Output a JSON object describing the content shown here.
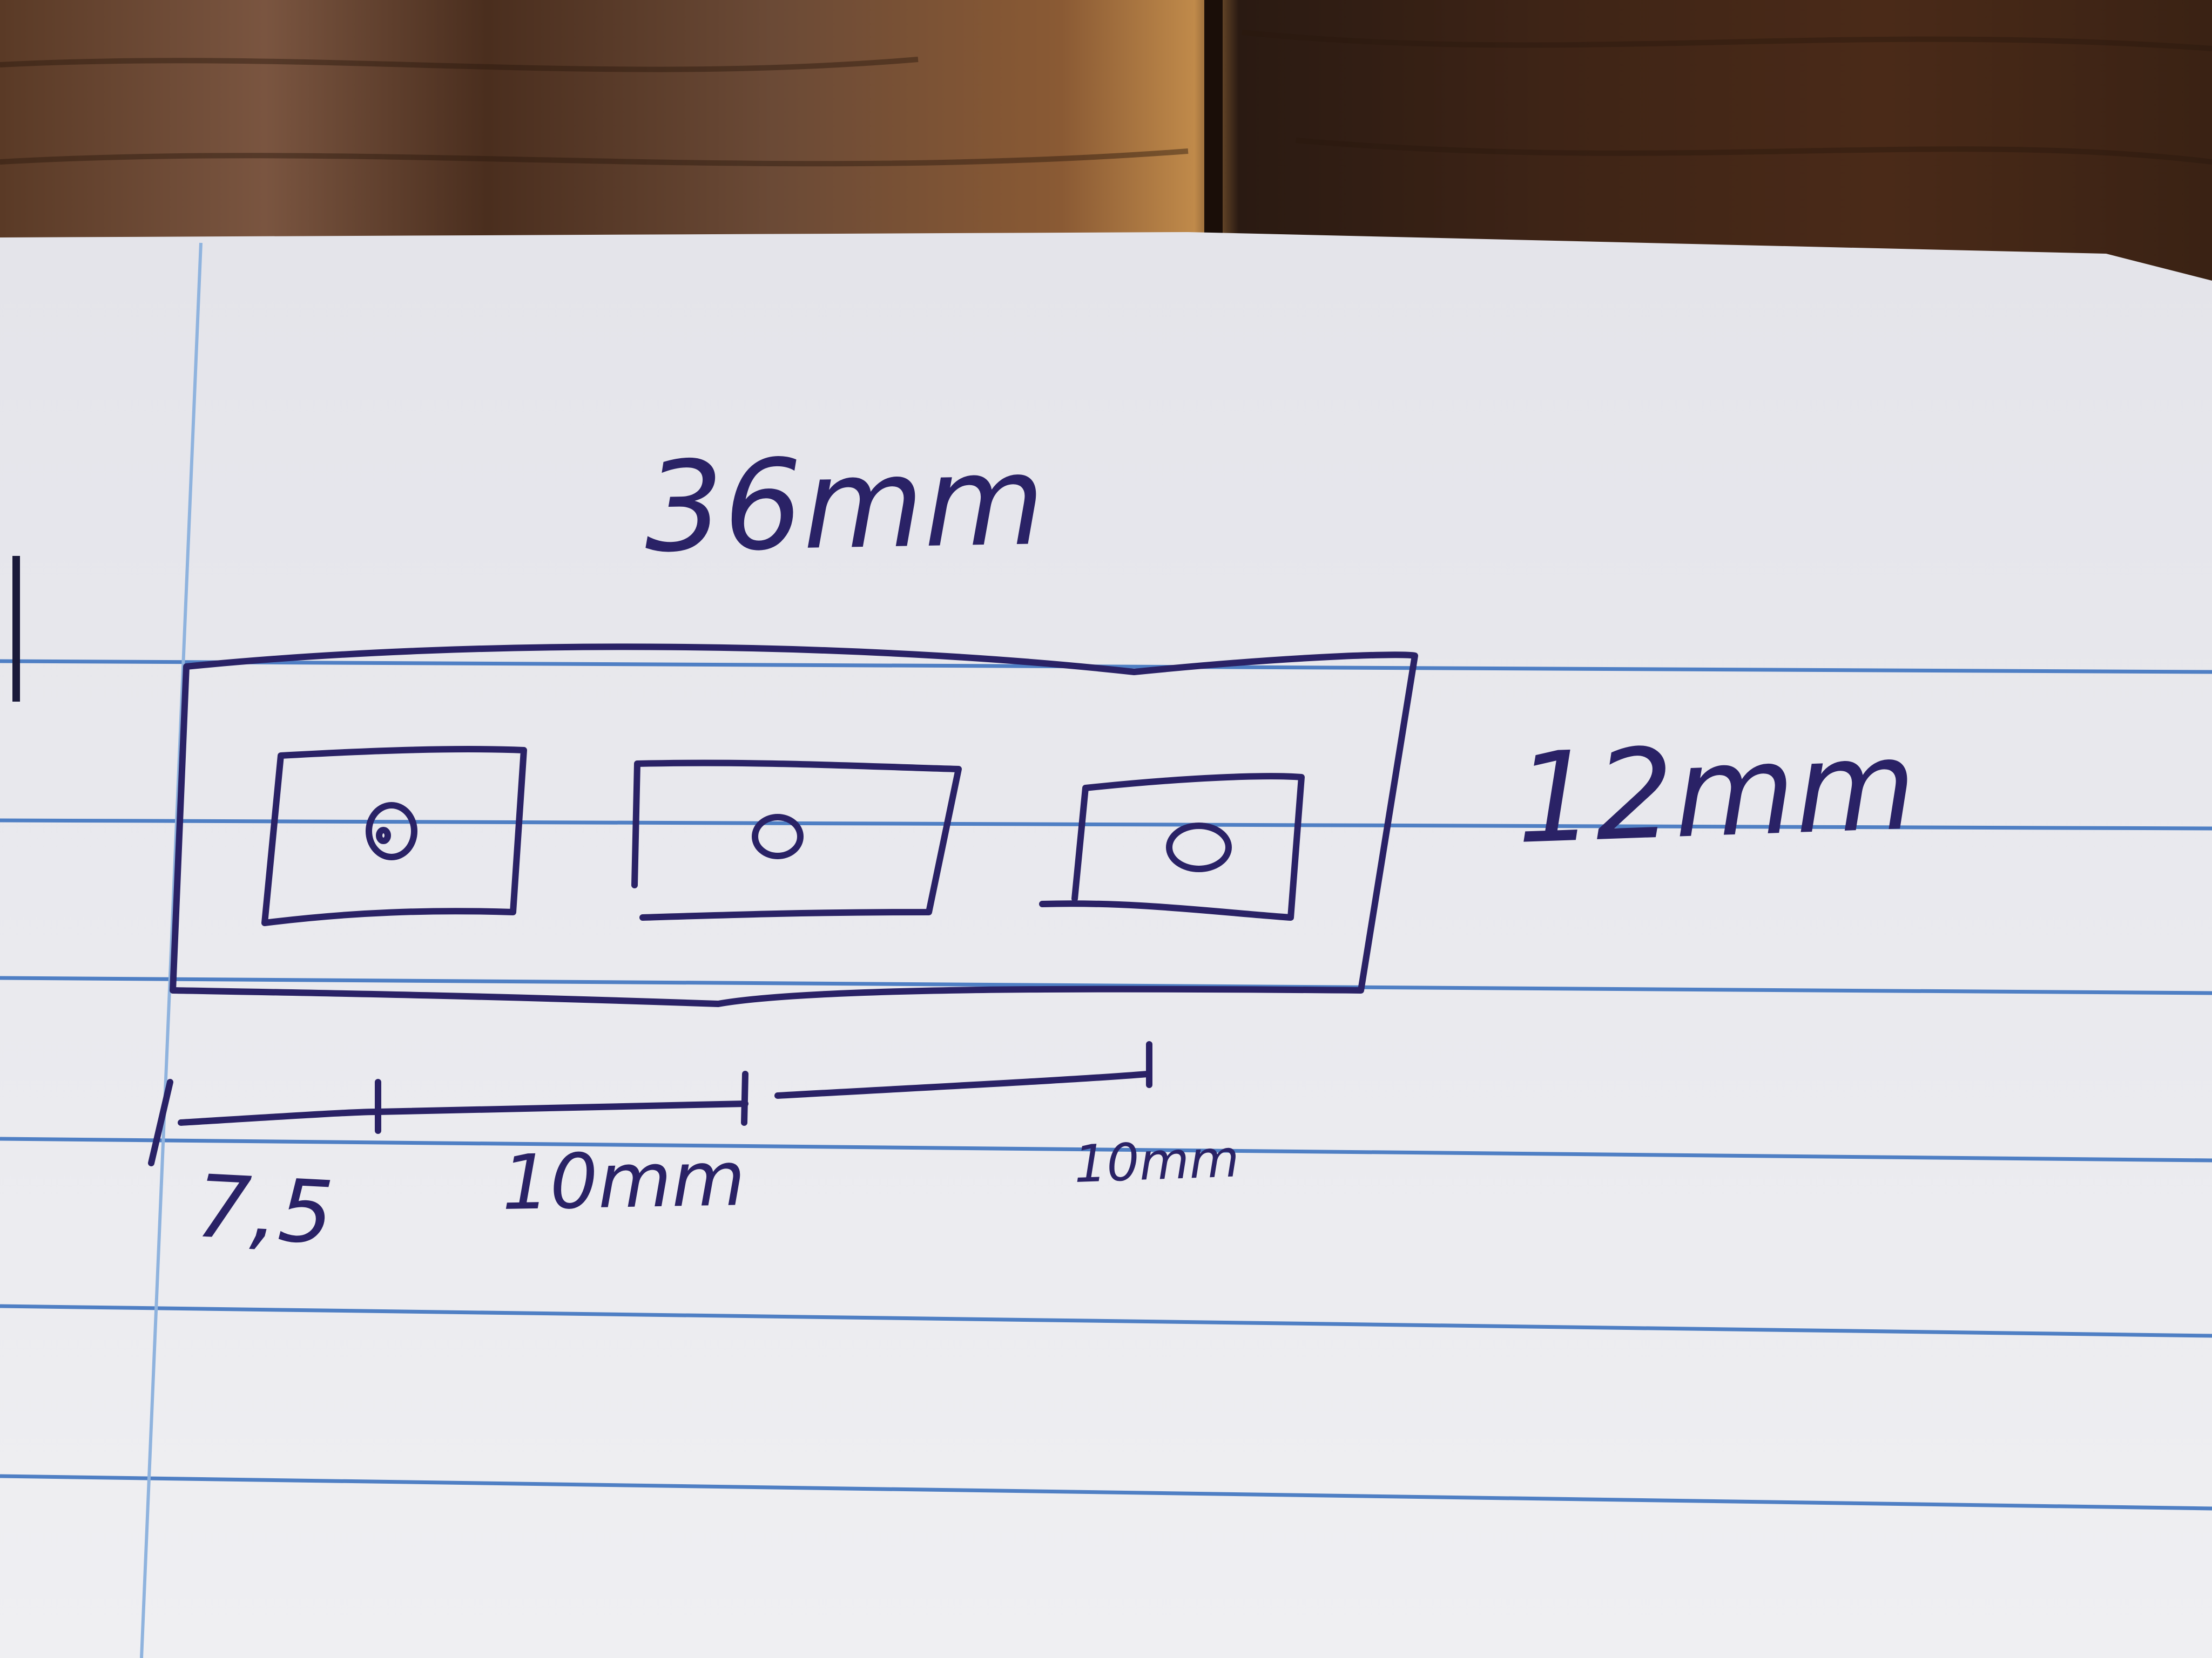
{
  "drawing": {
    "overall_width_label": "36mm",
    "overall_height_label": "12mm",
    "first_offset_label": "7,5",
    "spacing_label_1": "10mm",
    "spacing_label_2": "10mm",
    "cutout_count": 3
  },
  "colors": {
    "ink": "#2a2266",
    "paper": "#e8e8ec",
    "rule_line": "#4f7fc4",
    "margin_line": "#8fb3de",
    "wood_dark": "#3a2418",
    "wood_light": "#8a5a34"
  }
}
